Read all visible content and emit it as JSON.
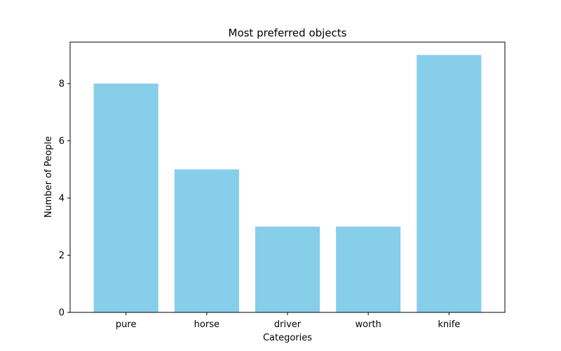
{
  "chart_data": {
    "type": "bar",
    "title": "Most preferred objects",
    "xlabel": "Categories",
    "ylabel": "Number of People",
    "categories": [
      "pure",
      "horse",
      "driver",
      "worth",
      "knife"
    ],
    "values": [
      8,
      5,
      3,
      3,
      9
    ],
    "ylim": [
      0,
      9.45
    ],
    "yticks": [
      "0",
      "2",
      "4",
      "6",
      "8"
    ],
    "bar_color": "#87ceeb",
    "grid": false,
    "legend": "none"
  }
}
